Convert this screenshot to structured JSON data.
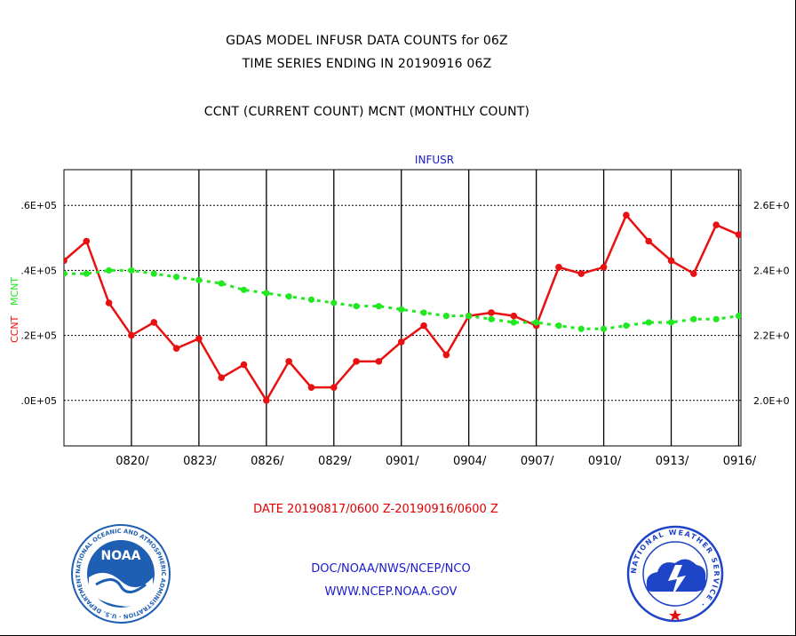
{
  "title": {
    "line1": "GDAS MODEL INFUSR DATA COUNTS for 06Z",
    "line2": "TIME SERIES ENDING IN 20190916 06Z",
    "line3": "CCNT (CURRENT COUNT) MCNT (MONTHLY COUNT)"
  },
  "chart_data": {
    "type": "line",
    "title": "INFUSR",
    "y_left_label_ccnt": "CCNT",
    "y_left_label_mcnt": "MCNT",
    "x_tick_labels": [
      "0820/",
      "0823/",
      "0826/",
      "0829/",
      "0901/",
      "0904/",
      "0907/",
      "0910/",
      "0913/",
      "0916/"
    ],
    "y_left_ticks": [
      ".0E+05",
      ".2E+05",
      ".4E+05",
      ".6E+05"
    ],
    "y_right_ticks": [
      "2.0E+0",
      "2.2E+0",
      "2.4E+0",
      "2.6E+0"
    ],
    "y_left_tick_values": [
      0.0,
      0.2,
      0.4,
      0.6
    ],
    "y_right_tick_values": [
      2.0,
      2.2,
      2.4,
      2.6
    ],
    "ylim_left": [
      -0.14,
      0.71
    ],
    "ylim_right": [
      1.86,
      2.71
    ],
    "x_range": [
      17,
      47.1
    ],
    "x_note": "x = day index where 17 = Aug 17 and 47 = Sep 16",
    "grid": true,
    "series": [
      {
        "name": "CCNT",
        "color": "#e81010",
        "axis": "left",
        "x": [
          17,
          18,
          19,
          20,
          21,
          22,
          23,
          24,
          25,
          26,
          27,
          28,
          29,
          30,
          31,
          32,
          33,
          34,
          35,
          36,
          37,
          38,
          39,
          40,
          41,
          42,
          43,
          44,
          45,
          46,
          47
        ],
        "values": [
          0.43,
          0.49,
          0.3,
          0.2,
          0.24,
          0.16,
          0.19,
          0.07,
          0.11,
          0.0,
          0.12,
          0.04,
          0.04,
          0.12,
          0.12,
          0.18,
          0.23,
          0.14,
          0.26,
          0.27,
          0.26,
          0.23,
          0.41,
          0.39,
          0.41,
          0.57,
          0.49,
          0.43,
          0.39,
          0.54,
          0.51
        ]
      },
      {
        "name": "MCNT",
        "color": "#22e822",
        "axis": "right",
        "x": [
          17,
          18,
          19,
          20,
          21,
          22,
          23,
          24,
          25,
          26,
          27,
          28,
          29,
          30,
          31,
          32,
          33,
          34,
          35,
          36,
          37,
          38,
          39,
          40,
          41,
          42,
          43,
          44,
          45,
          46,
          47
        ],
        "values": [
          2.39,
          2.39,
          2.4,
          2.4,
          2.39,
          2.38,
          2.37,
          2.36,
          2.34,
          2.33,
          2.32,
          2.31,
          2.3,
          2.29,
          2.29,
          2.28,
          2.27,
          2.26,
          2.26,
          2.25,
          2.24,
          2.24,
          2.23,
          2.22,
          2.22,
          2.23,
          2.24,
          2.24,
          2.25,
          2.25,
          2.26
        ]
      }
    ]
  },
  "footer": {
    "date_range": "DATE 20190817/0600 Z-20190916/0600 Z",
    "org_line": "DOC/NOAA/NWS/NCEP/NCO",
    "url_line": "WWW.NCEP.NOAA.GOV"
  },
  "logos": {
    "noaa_text": "NOAA",
    "noaa_ring_text": "NATIONAL OCEANIC AND ATMOSPHERIC ADMINISTRATION · U.S. DEPARTMENT OF COMMERCE ·",
    "nws_ring_text": "NATIONAL WEATHER SERVICE ·"
  },
  "colors": {
    "ccnt": "#e81010",
    "mcnt": "#22e822",
    "chart_title": "#1a1ad0",
    "footer_blue": "#1a1ad0",
    "date_red": "#e00000",
    "noaa_blue": "#1e5fb4",
    "nws_blue": "#1e44c8"
  }
}
